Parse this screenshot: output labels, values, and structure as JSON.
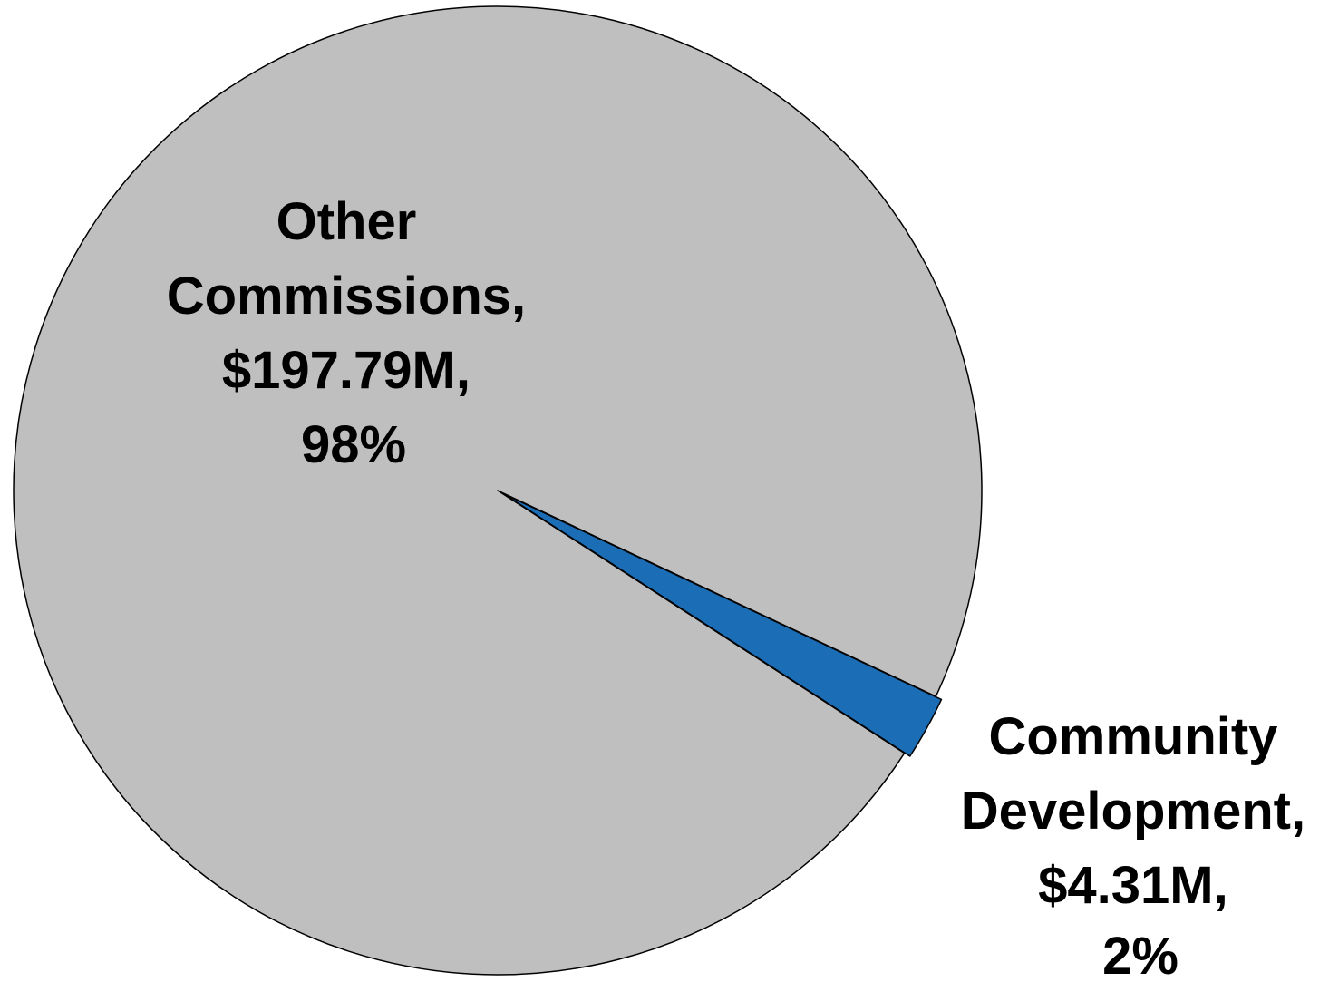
{
  "chart_data": {
    "type": "pie",
    "title": "",
    "slices": [
      {
        "name": "Other Commissions",
        "value": 197.79,
        "percent": 98,
        "color": "#BFBFBF",
        "label_lines": [
          "Other",
          "Commissions,",
          "$197.79M,",
          "98%"
        ]
      },
      {
        "name": "Community Development",
        "value": 4.31,
        "percent": 2,
        "color": "#1B6EB5",
        "exploded": true,
        "label_lines": [
          "Community",
          "Development,",
          "$4.31M,",
          "2%"
        ]
      }
    ],
    "legend": "none",
    "outline_color": "#000000"
  }
}
